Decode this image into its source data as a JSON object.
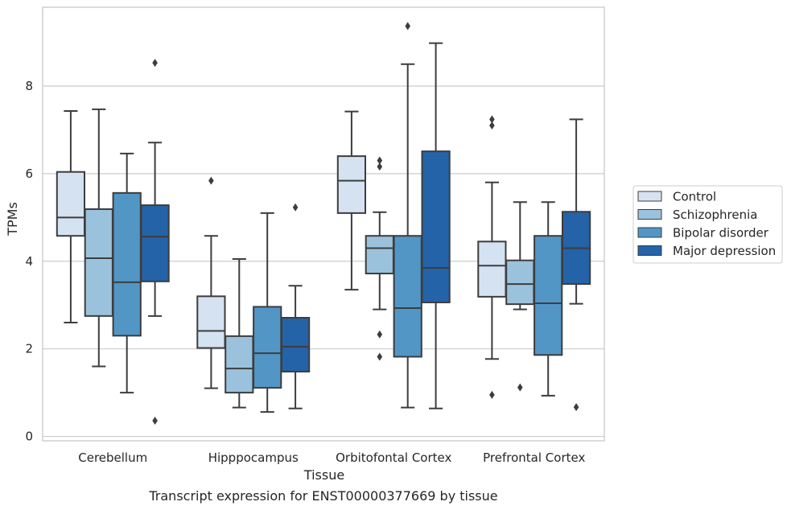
{
  "chart_data": {
    "type": "box",
    "title": "Transcript expression for ENST00000377669 by tissue",
    "xlabel": "Tissue",
    "ylabel": "TPMs",
    "ylim": [
      -0.1,
      9.8
    ],
    "yticks": [
      0,
      2,
      4,
      6,
      8
    ],
    "grid": "y",
    "legend_position": "right",
    "categories": [
      "Cerebellum",
      "Hipppocampus",
      "Orbitofontal Cortex",
      "Prefrontal Cortex"
    ],
    "series": [
      {
        "name": "Control",
        "color": "#d4e2f1",
        "boxes": [
          {
            "whislo": 2.6,
            "q1": 4.58,
            "med": 5.0,
            "q3": 6.04,
            "whishi": 7.43,
            "fliers": []
          },
          {
            "whislo": 1.1,
            "q1": 2.02,
            "med": 2.41,
            "q3": 3.2,
            "whishi": 4.58,
            "fliers": [
              5.84
            ]
          },
          {
            "whislo": 3.35,
            "q1": 5.1,
            "med": 5.84,
            "q3": 6.4,
            "whishi": 7.42,
            "fliers": []
          },
          {
            "whislo": 1.77,
            "q1": 3.19,
            "med": 3.9,
            "q3": 4.45,
            "whishi": 5.8,
            "fliers": [
              0.95,
              7.1,
              7.24
            ]
          }
        ]
      },
      {
        "name": "Schizophrenia",
        "color": "#9bc2dc",
        "boxes": [
          {
            "whislo": 1.6,
            "q1": 2.75,
            "med": 4.07,
            "q3": 5.19,
            "whishi": 7.47,
            "fliers": []
          },
          {
            "whislo": 0.66,
            "q1": 1.0,
            "med": 1.55,
            "q3": 2.29,
            "whishi": 4.05,
            "fliers": []
          },
          {
            "whislo": 2.9,
            "q1": 3.72,
            "med": 4.3,
            "q3": 4.58,
            "whishi": 5.12,
            "fliers": [
              1.82,
              2.33,
              6.16,
              6.3
            ]
          },
          {
            "whislo": 2.9,
            "q1": 3.02,
            "med": 3.48,
            "q3": 4.02,
            "whishi": 5.35,
            "fliers": [
              1.12
            ]
          }
        ]
      },
      {
        "name": "Bipolar disorder",
        "color": "#5296c6",
        "boxes": [
          {
            "whislo": 1.0,
            "q1": 2.3,
            "med": 3.52,
            "q3": 5.56,
            "whishi": 6.46,
            "fliers": []
          },
          {
            "whislo": 0.56,
            "q1": 1.11,
            "med": 1.9,
            "q3": 2.96,
            "whishi": 5.1,
            "fliers": []
          },
          {
            "whislo": 0.66,
            "q1": 1.82,
            "med": 2.93,
            "q3": 4.58,
            "whishi": 8.5,
            "fliers": [
              9.37
            ]
          },
          {
            "whislo": 0.93,
            "q1": 1.86,
            "med": 3.04,
            "q3": 4.58,
            "whishi": 5.35,
            "fliers": []
          }
        ]
      },
      {
        "name": "Major depression",
        "color": "#2463a7",
        "boxes": [
          {
            "whislo": 2.75,
            "q1": 3.54,
            "med": 4.56,
            "q3": 5.28,
            "whishi": 6.71,
            "fliers": [
              0.36,
              8.53
            ]
          },
          {
            "whislo": 0.64,
            "q1": 1.48,
            "med": 2.05,
            "q3": 2.71,
            "whishi": 3.44,
            "fliers": [
              5.23
            ]
          },
          {
            "whislo": 0.64,
            "q1": 3.06,
            "med": 3.85,
            "q3": 6.51,
            "whishi": 8.98,
            "fliers": []
          },
          {
            "whislo": 3.03,
            "q1": 3.48,
            "med": 4.3,
            "q3": 5.13,
            "whishi": 7.24,
            "fliers": [
              0.67
            ]
          }
        ]
      }
    ]
  }
}
